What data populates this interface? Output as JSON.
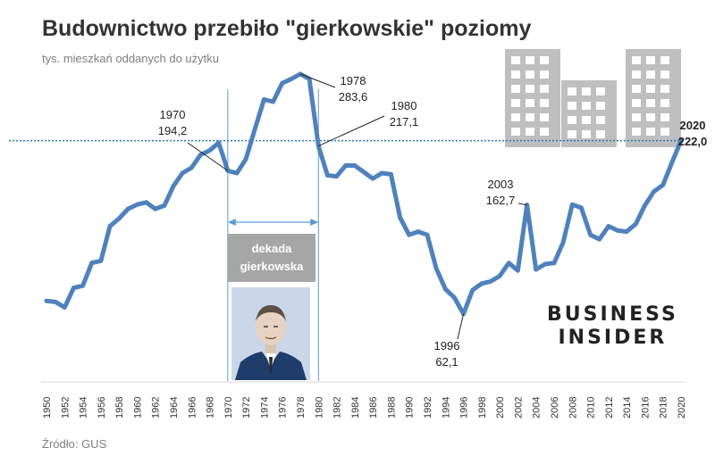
{
  "title": "Budownictwo przebiło \"gierkowskie\" poziomy",
  "subtitle": "tys. mieszkań oddanych do użytku",
  "source": "Źródło: GUS",
  "brand": {
    "line1": "BUSINESS",
    "line2": "INSIDER"
  },
  "decade_label": {
    "line1": "dekada",
    "line2": "gierkowska"
  },
  "colors": {
    "line": "#4f81bd",
    "reference": "#2e75b6",
    "text": "#333333",
    "muted": "#7f7f7f",
    "decade_box": "#a6a6a6",
    "buildings": "#bfbfbf"
  },
  "chart_data": {
    "type": "line",
    "title": "Budownictwo przebiło \"gierkowskie\" poziomy",
    "ylabel": "tys. mieszkań oddanych do użytku",
    "xlim": [
      1950,
      2020
    ],
    "ylim": [
      0,
      300
    ],
    "grid": false,
    "reference_line": {
      "value": 222.0,
      "style": "dotted"
    },
    "highlight_range": {
      "from": 1970,
      "to": 1980,
      "label": "dekada gierkowska"
    },
    "x_ticks": [
      1950,
      1952,
      1954,
      1956,
      1958,
      1960,
      1962,
      1964,
      1966,
      1968,
      1970,
      1972,
      1974,
      1976,
      1978,
      1980,
      1982,
      1984,
      1986,
      1988,
      1990,
      1992,
      1994,
      1996,
      1998,
      2000,
      2002,
      2004,
      2006,
      2008,
      2010,
      2012,
      2014,
      2016,
      2018,
      2020
    ],
    "x": [
      1950,
      1951,
      1952,
      1953,
      1954,
      1955,
      1956,
      1957,
      1958,
      1959,
      1960,
      1961,
      1962,
      1963,
      1964,
      1965,
      1966,
      1967,
      1968,
      1969,
      1970,
      1971,
      1972,
      1973,
      1974,
      1975,
      1976,
      1977,
      1978,
      1979,
      1980,
      1981,
      1982,
      1983,
      1984,
      1985,
      1986,
      1987,
      1988,
      1989,
      1990,
      1991,
      1992,
      1993,
      1994,
      1995,
      1996,
      1997,
      1998,
      1999,
      2000,
      2001,
      2002,
      2003,
      2004,
      2005,
      2006,
      2007,
      2008,
      2009,
      2010,
      2011,
      2012,
      2013,
      2014,
      2015,
      2016,
      2017,
      2018,
      2019,
      2020
    ],
    "series": [
      {
        "values": [
          74,
          73,
          68,
          86,
          88,
          109,
          111,
          143,
          150,
          159,
          163,
          165,
          159,
          162,
          180,
          192,
          197,
          209,
          213,
          220,
          194.2,
          192,
          205,
          233,
          260,
          258,
          275,
          279,
          283.6,
          279,
          217.1,
          190,
          189,
          199,
          199,
          193,
          187,
          192,
          191,
          151,
          135,
          138,
          135,
          104,
          85,
          77,
          62.1,
          84,
          90,
          92,
          97,
          109,
          102,
          162.7,
          103,
          108,
          109,
          128,
          163,
          160,
          135,
          131,
          143,
          139,
          138,
          145,
          162,
          175,
          181,
          202,
          222.0
        ]
      }
    ],
    "annotations": [
      {
        "x": 1970,
        "label": "1970",
        "value": "194,2"
      },
      {
        "x": 1978,
        "label": "1978",
        "value": "283,6"
      },
      {
        "x": 1980,
        "label": "1980",
        "value": "217,1"
      },
      {
        "x": 1996,
        "label": "1996",
        "value": "62,1"
      },
      {
        "x": 2003,
        "label": "2003",
        "value": "162,7"
      },
      {
        "x": 2020,
        "label": "2020",
        "value": "222,0"
      }
    ]
  }
}
